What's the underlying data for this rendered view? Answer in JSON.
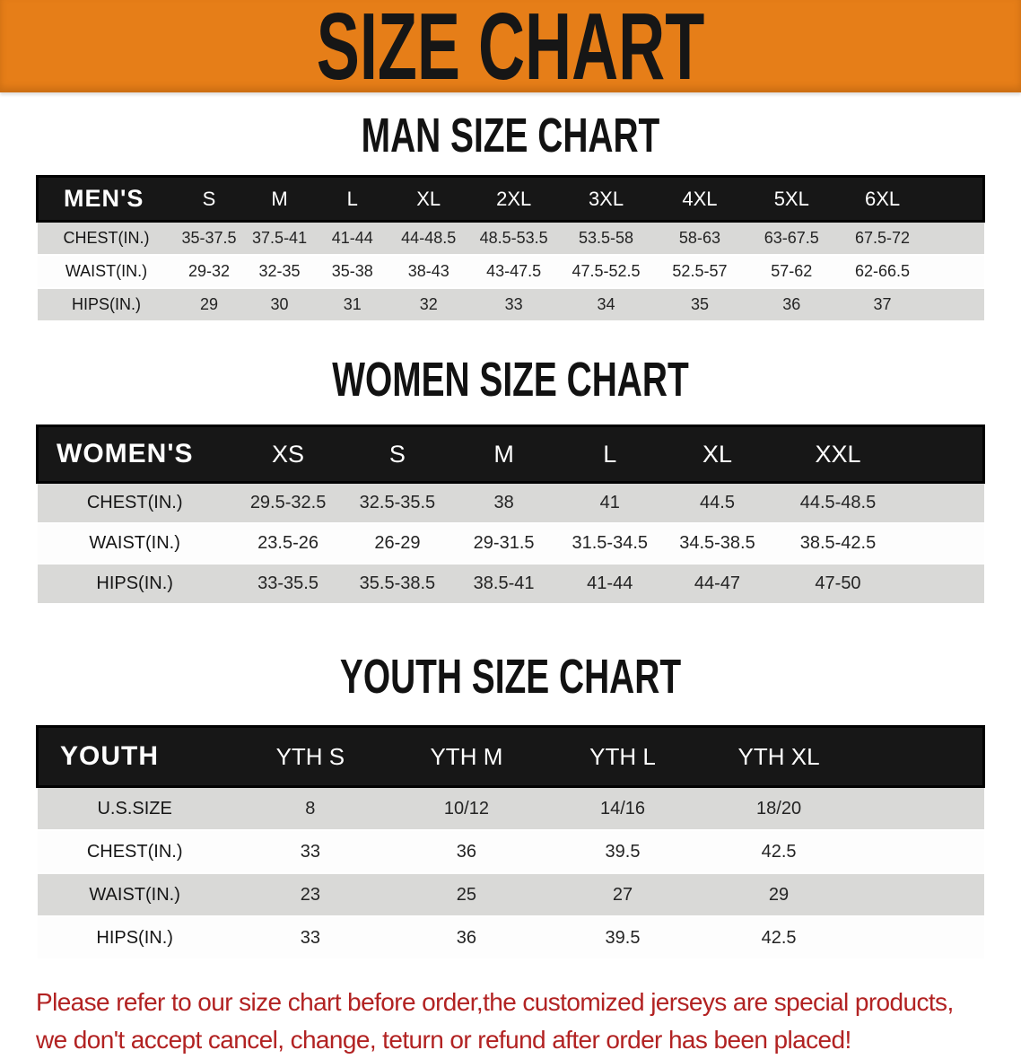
{
  "banner": {
    "title": "SIZE CHART",
    "bg_color": "#e67e18",
    "text_color": "#161616"
  },
  "tables": {
    "men": {
      "title": "MAN SIZE CHART",
      "header": [
        "MEN'S",
        "S",
        "M",
        "L",
        "XL",
        "2XL",
        "3XL",
        "4XL",
        "5XL",
        "6XL"
      ],
      "rows": [
        {
          "label": "CHEST(IN.)",
          "values": [
            "35-37.5",
            "37.5-41",
            "41-44",
            "44-48.5",
            "48.5-53.5",
            "53.5-58",
            "58-63",
            "63-67.5",
            "67.5-72"
          ]
        },
        {
          "label": "WAIST(IN.)",
          "values": [
            "29-32",
            "32-35",
            "35-38",
            "38-43",
            "43-47.5",
            "47.5-52.5",
            "52.5-57",
            "57-62",
            "62-66.5"
          ]
        },
        {
          "label": "HIPS(IN.)",
          "values": [
            "29",
            "30",
            "31",
            "32",
            "33",
            "34",
            "35",
            "36",
            "37"
          ]
        }
      ]
    },
    "women": {
      "title": "WOMEN SIZE CHART",
      "header": [
        "WOMEN'S",
        "XS",
        "S",
        "M",
        "L",
        "XL",
        "XXL"
      ],
      "rows": [
        {
          "label": "CHEST(IN.)",
          "values": [
            "29.5-32.5",
            "32.5-35.5",
            "38",
            "41",
            "44.5",
            "44.5-48.5"
          ]
        },
        {
          "label": "WAIST(IN.)",
          "values": [
            "23.5-26",
            "26-29",
            "29-31.5",
            "31.5-34.5",
            "34.5-38.5",
            "38.5-42.5"
          ]
        },
        {
          "label": "HIPS(IN.)",
          "values": [
            "33-35.5",
            "35.5-38.5",
            "38.5-41",
            "41-44",
            "44-47",
            "47-50"
          ]
        }
      ]
    },
    "youth": {
      "title": "YOUTH SIZE CHART",
      "header": [
        "YOUTH",
        "YTH S",
        "YTH M",
        "YTH L",
        "YTH XL"
      ],
      "rows": [
        {
          "label": "U.S.SIZE",
          "values": [
            "8",
            "10/12",
            "14/16",
            "18/20"
          ]
        },
        {
          "label": "CHEST(IN.)",
          "values": [
            "33",
            "36",
            "39.5",
            "42.5"
          ]
        },
        {
          "label": "WAIST(IN.)",
          "values": [
            "23",
            "25",
            "27",
            "29"
          ]
        },
        {
          "label": "HIPS(IN.)",
          "values": [
            "33",
            "36",
            "39.5",
            "42.5"
          ]
        }
      ]
    }
  },
  "footnote": {
    "line1": "Please refer to our size chart before order,the customized jerseys are special products,",
    "line2": "we don't accept cancel, change, teturn or refund after order has been placed!",
    "color": "#b22222"
  }
}
